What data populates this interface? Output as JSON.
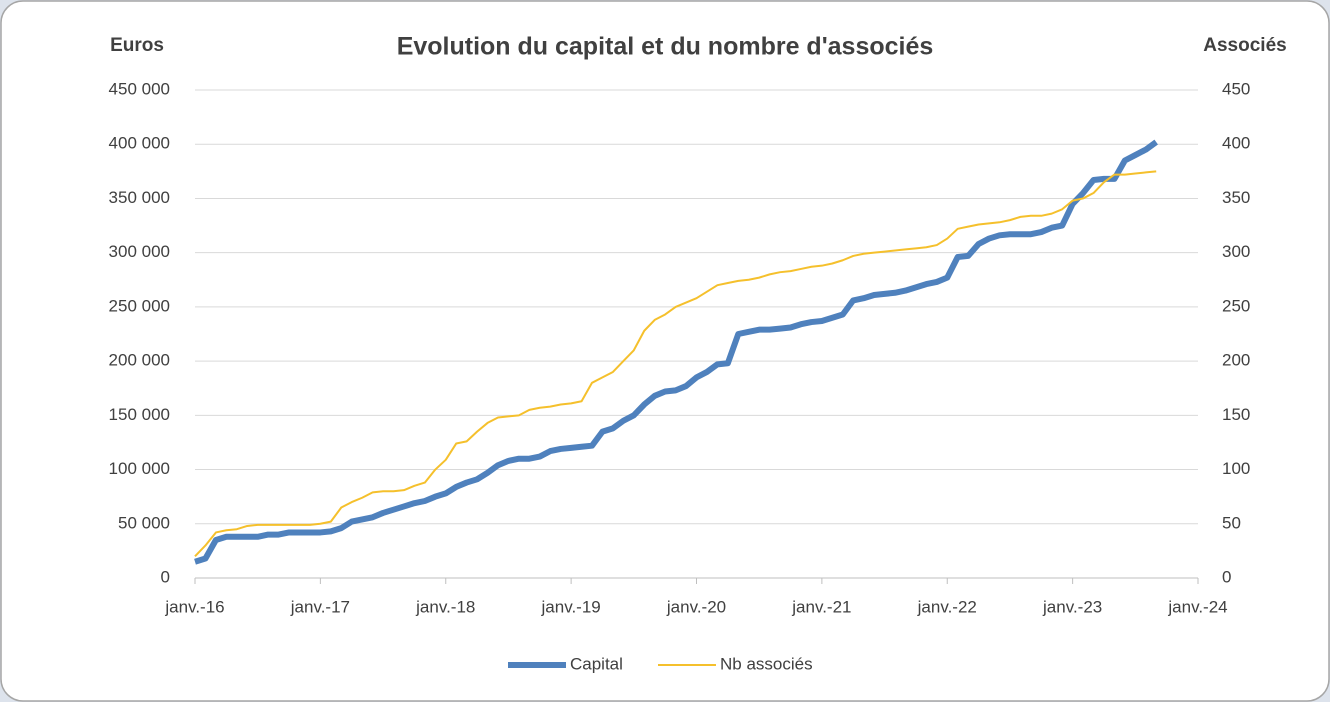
{
  "chart_data": {
    "type": "line",
    "title": "Evolution du capital et du nombre d'associés",
    "ylabel": "Euros",
    "y2label": "Associés",
    "x": [
      "2016-01",
      "2016-02",
      "2016-03",
      "2016-04",
      "2016-05",
      "2016-06",
      "2016-07",
      "2016-08",
      "2016-09",
      "2016-10",
      "2016-11",
      "2016-12",
      "2017-01",
      "2017-02",
      "2017-03",
      "2017-04",
      "2017-05",
      "2017-06",
      "2017-07",
      "2017-08",
      "2017-09",
      "2017-10",
      "2017-11",
      "2017-12",
      "2018-01",
      "2018-02",
      "2018-03",
      "2018-04",
      "2018-05",
      "2018-06",
      "2018-07",
      "2018-08",
      "2018-09",
      "2018-10",
      "2018-11",
      "2018-12",
      "2019-01",
      "2019-02",
      "2019-03",
      "2019-04",
      "2019-05",
      "2019-06",
      "2019-07",
      "2019-08",
      "2019-09",
      "2019-10",
      "2019-11",
      "2019-12",
      "2020-01",
      "2020-02",
      "2020-03",
      "2020-04",
      "2020-05",
      "2020-06",
      "2020-07",
      "2020-08",
      "2020-09",
      "2020-10",
      "2020-11",
      "2020-12",
      "2021-01",
      "2021-02",
      "2021-03",
      "2021-04",
      "2021-05",
      "2021-06",
      "2021-07",
      "2021-08",
      "2021-09",
      "2021-10",
      "2021-11",
      "2021-12",
      "2022-01",
      "2022-02",
      "2022-03",
      "2022-04",
      "2022-05",
      "2022-06",
      "2022-07",
      "2022-08",
      "2022-09",
      "2022-10",
      "2022-11",
      "2022-12",
      "2023-01",
      "2023-02",
      "2023-03",
      "2023-04",
      "2023-05",
      "2023-06",
      "2023-07",
      "2023-08",
      "2023-09"
    ],
    "series": [
      {
        "name": "Capital",
        "color": "#4f81bd",
        "width": 6,
        "values": [
          15000,
          18000,
          35000,
          38000,
          38000,
          38000,
          38000,
          40000,
          40000,
          42000,
          42000,
          42000,
          42000,
          43000,
          46000,
          52000,
          54000,
          56000,
          60000,
          63000,
          66000,
          69000,
          71000,
          75000,
          78000,
          84000,
          88000,
          91000,
          97000,
          104000,
          108000,
          110000,
          110000,
          112000,
          117000,
          119000,
          120000,
          121000,
          122000,
          135000,
          138000,
          145000,
          150000,
          160000,
          168000,
          172000,
          173000,
          177000,
          185000,
          190000,
          197000,
          198000,
          225000,
          227000,
          229000,
          229000,
          230000,
          231000,
          234000,
          236000,
          237000,
          240000,
          243000,
          256000,
          258000,
          261000,
          262000,
          263000,
          265000,
          268000,
          271000,
          273000,
          277000,
          296000,
          297000,
          308000,
          313000,
          316000,
          317000,
          317000,
          317000,
          319000,
          323000,
          325000,
          345000,
          355000,
          367000,
          368000,
          368000,
          385000,
          390000,
          395000,
          402000
        ]
      },
      {
        "name": "Nb associés",
        "color": "#f5c02c",
        "width": 2,
        "axis": "y2",
        "values": [
          20,
          30,
          42,
          44,
          45,
          48,
          49,
          49,
          49,
          49,
          49,
          49,
          50,
          52,
          65,
          70,
          74,
          79,
          80,
          80,
          81,
          85,
          88,
          100,
          109,
          124,
          126,
          135,
          143,
          148,
          149,
          150,
          155,
          157,
          158,
          160,
          161,
          163,
          180,
          185,
          190,
          200,
          210,
          228,
          238,
          243,
          250,
          254,
          258,
          264,
          270,
          272,
          274,
          275,
          277,
          280,
          282,
          283,
          285,
          287,
          288,
          290,
          293,
          297,
          299,
          300,
          301,
          302,
          303,
          304,
          305,
          307,
          313,
          322,
          324,
          326,
          327,
          328,
          330,
          333,
          334,
          334,
          336,
          340,
          348,
          350,
          355,
          365,
          372,
          372,
          373,
          374,
          375
        ]
      }
    ],
    "xlim": [
      "2016-01",
      "2024-01"
    ],
    "xticks": [
      {
        "value": "2016-01",
        "label": "janv.-16"
      },
      {
        "value": "2017-01",
        "label": "janv.-17"
      },
      {
        "value": "2018-01",
        "label": "janv.-18"
      },
      {
        "value": "2019-01",
        "label": "janv.-19"
      },
      {
        "value": "2020-01",
        "label": "janv.-20"
      },
      {
        "value": "2021-01",
        "label": "janv.-21"
      },
      {
        "value": "2022-01",
        "label": "janv.-22"
      },
      {
        "value": "2023-01",
        "label": "janv.-23"
      },
      {
        "value": "2024-01",
        "label": "janv.-24"
      }
    ],
    "ylim": [
      0,
      450000
    ],
    "yticks": [
      0,
      {
        "value": 50000,
        "label": "50 000"
      },
      {
        "value": 100000,
        "label": "100 000"
      },
      {
        "value": 150000,
        "label": "150 000"
      },
      {
        "value": 200000,
        "label": "200 000"
      },
      {
        "value": 250000,
        "label": "250 000"
      },
      {
        "value": 300000,
        "label": "300 000"
      },
      {
        "value": 350000,
        "label": "350 000"
      },
      {
        "value": 400000,
        "label": "400 000"
      },
      {
        "value": 450000,
        "label": "450 000"
      }
    ],
    "y2lim": [
      0,
      450
    ],
    "y2ticks": [
      0,
      50,
      100,
      150,
      200,
      250,
      300,
      350,
      400,
      450
    ],
    "grid": true,
    "legend": "bottom"
  }
}
